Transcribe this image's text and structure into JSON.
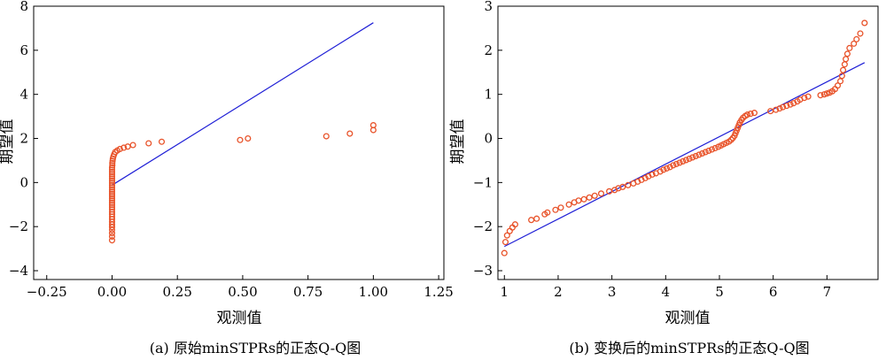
{
  "chart_data": [
    {
      "type": "scatter",
      "caption": "(a) 原始minSTPRs的正态Q-Q图",
      "xlabel": "观测值",
      "ylabel": "期望值",
      "xlim": [
        -0.3,
        1.27
      ],
      "ylim": [
        -4.4,
        8.0
      ],
      "xticks": [
        -0.25,
        0.0,
        0.25,
        0.5,
        0.75,
        1.0,
        1.25
      ],
      "xtick_labels": [
        "−0.25",
        "0.00",
        "0.25",
        "0.50",
        "0.75",
        "1.00",
        "1.25"
      ],
      "yticks": [
        -4,
        -2,
        0,
        2,
        4,
        6,
        8
      ],
      "ytick_labels": [
        "−4",
        "−2",
        "0",
        "2",
        "4",
        "6",
        "8"
      ],
      "reference_line": {
        "x": [
          0.0,
          1.0
        ],
        "y": [
          -0.12,
          7.25
        ],
        "color": "#1f1fd6"
      },
      "series": [
        {
          "marker_color": "#e8532a",
          "points": [
            [
              0.0,
              -2.62
            ],
            [
              0.0,
              -2.45
            ],
            [
              0.0,
              -2.3
            ],
            [
              0.0,
              -2.15
            ],
            [
              0.0,
              -2.02
            ],
            [
              0.0,
              -1.9
            ],
            [
              0.0,
              -1.78
            ],
            [
              0.0,
              -1.66
            ],
            [
              0.0,
              -1.55
            ],
            [
              0.0,
              -1.44
            ],
            [
              0.0,
              -1.33
            ],
            [
              0.0,
              -1.22
            ],
            [
              0.0,
              -1.12
            ],
            [
              0.0,
              -1.02
            ],
            [
              0.0,
              -0.92
            ],
            [
              0.0,
              -0.82
            ],
            [
              0.0,
              -0.72
            ],
            [
              0.0,
              -0.62
            ],
            [
              0.0,
              -0.52
            ],
            [
              0.0,
              -0.42
            ],
            [
              0.0,
              -0.32
            ],
            [
              0.0,
              -0.22
            ],
            [
              0.0,
              -0.12
            ],
            [
              0.0,
              -0.02
            ],
            [
              0.0,
              0.08
            ],
            [
              0.0,
              0.18
            ],
            [
              0.0,
              0.28
            ],
            [
              0.0,
              0.38
            ],
            [
              0.0,
              0.48
            ],
            [
              0.0,
              0.58
            ],
            [
              0.0,
              0.68
            ],
            [
              0.001,
              0.78
            ],
            [
              0.001,
              0.88
            ],
            [
              0.002,
              0.98
            ],
            [
              0.003,
              1.08
            ],
            [
              0.005,
              1.18
            ],
            [
              0.008,
              1.28
            ],
            [
              0.012,
              1.38
            ],
            [
              0.02,
              1.45
            ],
            [
              0.03,
              1.52
            ],
            [
              0.045,
              1.58
            ],
            [
              0.06,
              1.63
            ],
            [
              0.08,
              1.7
            ],
            [
              0.14,
              1.78
            ],
            [
              0.19,
              1.85
            ],
            [
              0.49,
              1.93
            ],
            [
              0.52,
              2.0
            ],
            [
              0.82,
              2.1
            ],
            [
              0.91,
              2.22
            ],
            [
              1.0,
              2.38
            ],
            [
              1.0,
              2.6
            ]
          ]
        }
      ]
    },
    {
      "type": "scatter",
      "caption": "(b) 变换后的minSTPRs的正态Q-Q图",
      "xlabel": "观测值",
      "ylabel": "期望值",
      "xlim": [
        0.88,
        7.95
      ],
      "ylim": [
        -3.2,
        3.0
      ],
      "xticks": [
        1,
        2,
        3,
        4,
        5,
        6,
        7
      ],
      "xtick_labels": [
        "1",
        "2",
        "3",
        "4",
        "5",
        "6",
        "7"
      ],
      "yticks": [
        -3,
        -2,
        -1,
        0,
        1,
        2,
        3
      ],
      "ytick_labels": [
        "−3",
        "−2",
        "−1",
        "0",
        "1",
        "2",
        "3"
      ],
      "reference_line": {
        "x": [
          1.0,
          7.7
        ],
        "y": [
          -2.45,
          1.72
        ],
        "color": "#1f1fd6"
      },
      "series": [
        {
          "marker_color": "#e8532a",
          "points": [
            [
              1.0,
              -2.6
            ],
            [
              1.02,
              -2.35
            ],
            [
              1.05,
              -2.2
            ],
            [
              1.1,
              -2.1
            ],
            [
              1.15,
              -2.02
            ],
            [
              1.2,
              -1.95
            ],
            [
              1.5,
              -1.85
            ],
            [
              1.6,
              -1.82
            ],
            [
              1.75,
              -1.72
            ],
            [
              1.8,
              -1.68
            ],
            [
              1.95,
              -1.62
            ],
            [
              2.05,
              -1.57
            ],
            [
              2.2,
              -1.5
            ],
            [
              2.3,
              -1.45
            ],
            [
              2.38,
              -1.41
            ],
            [
              2.48,
              -1.38
            ],
            [
              2.58,
              -1.34
            ],
            [
              2.68,
              -1.3
            ],
            [
              2.8,
              -1.25
            ],
            [
              2.95,
              -1.2
            ],
            [
              3.05,
              -1.17
            ],
            [
              3.12,
              -1.13
            ],
            [
              3.2,
              -1.1
            ],
            [
              3.3,
              -1.06
            ],
            [
              3.4,
              -1.02
            ],
            [
              3.48,
              -0.98
            ],
            [
              3.55,
              -0.94
            ],
            [
              3.62,
              -0.9
            ],
            [
              3.68,
              -0.86
            ],
            [
              3.75,
              -0.82
            ],
            [
              3.82,
              -0.79
            ],
            [
              3.9,
              -0.75
            ],
            [
              3.96,
              -0.71
            ],
            [
              4.02,
              -0.68
            ],
            [
              4.08,
              -0.65
            ],
            [
              4.14,
              -0.61
            ],
            [
              4.2,
              -0.58
            ],
            [
              4.26,
              -0.55
            ],
            [
              4.32,
              -0.52
            ],
            [
              4.38,
              -0.49
            ],
            [
              4.44,
              -0.46
            ],
            [
              4.5,
              -0.43
            ],
            [
              4.56,
              -0.4
            ],
            [
              4.62,
              -0.37
            ],
            [
              4.68,
              -0.34
            ],
            [
              4.74,
              -0.31
            ],
            [
              4.8,
              -0.28
            ],
            [
              4.86,
              -0.25
            ],
            [
              4.92,
              -0.22
            ],
            [
              4.98,
              -0.19
            ],
            [
              5.03,
              -0.16
            ],
            [
              5.08,
              -0.13
            ],
            [
              5.13,
              -0.1
            ],
            [
              5.18,
              -0.07
            ],
            [
              5.22,
              -0.03
            ],
            [
              5.25,
              0.01
            ],
            [
              5.28,
              0.06
            ],
            [
              5.3,
              0.12
            ],
            [
              5.32,
              0.18
            ],
            [
              5.34,
              0.24
            ],
            [
              5.36,
              0.3
            ],
            [
              5.38,
              0.36
            ],
            [
              5.41,
              0.42
            ],
            [
              5.44,
              0.47
            ],
            [
              5.48,
              0.51
            ],
            [
              5.52,
              0.54
            ],
            [
              5.58,
              0.56
            ],
            [
              5.65,
              0.58
            ],
            [
              5.95,
              0.62
            ],
            [
              6.05,
              0.65
            ],
            [
              6.12,
              0.68
            ],
            [
              6.18,
              0.71
            ],
            [
              6.25,
              0.74
            ],
            [
              6.32,
              0.77
            ],
            [
              6.38,
              0.8
            ],
            [
              6.45,
              0.84
            ],
            [
              6.5,
              0.88
            ],
            [
              6.58,
              0.92
            ],
            [
              6.65,
              0.95
            ],
            [
              6.88,
              0.98
            ],
            [
              6.95,
              1.0
            ],
            [
              7.0,
              1.02
            ],
            [
              7.05,
              1.04
            ],
            [
              7.1,
              1.07
            ],
            [
              7.15,
              1.12
            ],
            [
              7.2,
              1.2
            ],
            [
              7.25,
              1.3
            ],
            [
              7.28,
              1.42
            ],
            [
              7.3,
              1.55
            ],
            [
              7.33,
              1.68
            ],
            [
              7.35,
              1.8
            ],
            [
              7.38,
              1.92
            ],
            [
              7.42,
              2.05
            ],
            [
              7.5,
              2.15
            ],
            [
              7.55,
              2.25
            ],
            [
              7.62,
              2.38
            ],
            [
              7.7,
              2.62
            ]
          ]
        }
      ]
    }
  ]
}
